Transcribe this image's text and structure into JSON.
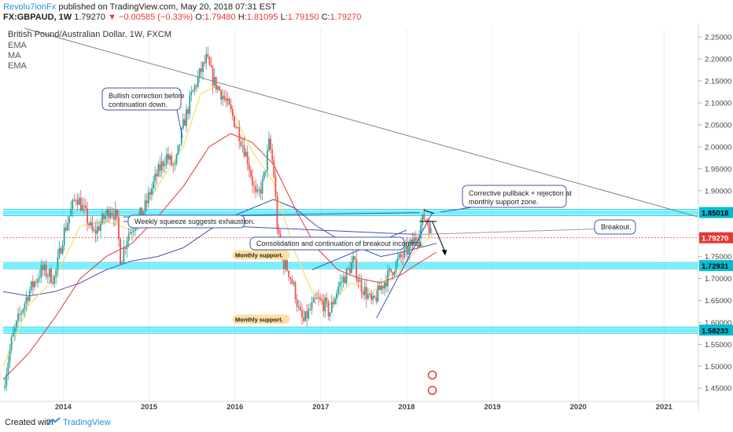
{
  "header": {
    "author": "Revolu7ionFx",
    "published": "published on TradingView.com, May 20, 2018 07:31 EST",
    "symbol": "FX:GBPAUD, 1W",
    "last": "1.79270",
    "change": "−0.00585 (−0.33%)",
    "o_label": "O:",
    "o": "1.79480",
    "h_label": "H:",
    "h": "1.81095",
    "l_label": "L:",
    "l": "1.79150",
    "c_label": "C:",
    "c": "1.79270"
  },
  "legend": {
    "instrument": "British Pound/Australian Dollar, 1W, FXCM",
    "ind1": "EMA",
    "ind2": "MA",
    "ind3": "EMA"
  },
  "footer": {
    "created": "Created with",
    "brand": "TradingView"
  },
  "colors": {
    "up": "#26a69a",
    "down": "#ef5350",
    "ema_fast": "#f5e07a",
    "ema_slow": "#e53935",
    "ma": "#3f51b5",
    "zone": "#00e5ff",
    "price_line": "#e53935",
    "trend": "#7f7f7f"
  },
  "chart_data": {
    "type": "candlestick",
    "symbol": "GBPAUD",
    "timeframe": "1W",
    "x_ticks": [
      "2014",
      "2015",
      "2016",
      "2017",
      "2018",
      "2019",
      "2020",
      "2021"
    ],
    "y_ticks": [
      "2.25000",
      "2.20000",
      "2.15000",
      "2.10000",
      "2.05000",
      "2.00000",
      "1.95000",
      "1.90000",
      "1.85000",
      "1.80000",
      "1.75000",
      "1.70000",
      "1.65000",
      "1.60000",
      "1.55000",
      "1.50000",
      "1.45000"
    ],
    "ylim": [
      1.42,
      2.27
    ],
    "xlim": [
      2013.3,
      2021.4
    ],
    "last_price": 1.7927,
    "levels": [
      {
        "value": 1.85018,
        "label": "1.85018"
      },
      {
        "value": 1.72931,
        "label": "1.72931"
      },
      {
        "value": 1.58233,
        "label": "1.58233"
      }
    ],
    "price_label": "1.79270",
    "path": [
      [
        2013.3,
        1.45
      ],
      [
        2013.4,
        1.56
      ],
      [
        2013.5,
        1.62
      ],
      [
        2013.6,
        1.67
      ],
      [
        2013.75,
        1.72
      ],
      [
        2013.9,
        1.7
      ],
      [
        2014.0,
        1.8
      ],
      [
        2014.1,
        1.86
      ],
      [
        2014.15,
        1.89
      ],
      [
        2014.25,
        1.85
      ],
      [
        2014.35,
        1.8
      ],
      [
        2014.45,
        1.83
      ],
      [
        2014.55,
        1.86
      ],
      [
        2014.62,
        1.84
      ],
      [
        2014.67,
        1.74
      ],
      [
        2014.75,
        1.8
      ],
      [
        2014.85,
        1.83
      ],
      [
        2014.95,
        1.86
      ],
      [
        2015.0,
        1.89
      ],
      [
        2015.1,
        1.94
      ],
      [
        2015.2,
        1.98
      ],
      [
        2015.3,
        1.95
      ],
      [
        2015.4,
        2.05
      ],
      [
        2015.5,
        2.12
      ],
      [
        2015.6,
        2.17
      ],
      [
        2015.67,
        2.2
      ],
      [
        2015.75,
        2.15
      ],
      [
        2015.85,
        2.12
      ],
      [
        2015.95,
        2.08
      ],
      [
        2016.05,
        2.03
      ],
      [
        2016.15,
        1.97
      ],
      [
        2016.25,
        1.88
      ],
      [
        2016.33,
        1.92
      ],
      [
        2016.4,
        2.01
      ],
      [
        2016.45,
        1.95
      ],
      [
        2016.5,
        1.8
      ],
      [
        2016.55,
        1.74
      ],
      [
        2016.62,
        1.72
      ],
      [
        2016.7,
        1.67
      ],
      [
        2016.75,
        1.62
      ],
      [
        2016.8,
        1.6
      ],
      [
        2016.85,
        1.62
      ],
      [
        2016.95,
        1.65
      ],
      [
        2017.05,
        1.64
      ],
      [
        2017.1,
        1.62
      ],
      [
        2017.2,
        1.68
      ],
      [
        2017.3,
        1.71
      ],
      [
        2017.38,
        1.74
      ],
      [
        2017.45,
        1.69
      ],
      [
        2017.55,
        1.66
      ],
      [
        2017.6,
        1.64
      ],
      [
        2017.7,
        1.68
      ],
      [
        2017.8,
        1.71
      ],
      [
        2017.9,
        1.74
      ],
      [
        2018.0,
        1.76
      ],
      [
        2018.1,
        1.79
      ],
      [
        2018.15,
        1.81
      ],
      [
        2018.2,
        1.84
      ],
      [
        2018.25,
        1.83
      ],
      [
        2018.3,
        1.79
      ]
    ],
    "ema_fast": [
      [
        2013.3,
        1.5
      ],
      [
        2013.6,
        1.64
      ],
      [
        2013.9,
        1.7
      ],
      [
        2014.2,
        1.82
      ],
      [
        2014.5,
        1.83
      ],
      [
        2014.8,
        1.81
      ],
      [
        2015.1,
        1.91
      ],
      [
        2015.4,
        2.0
      ],
      [
        2015.6,
        2.12
      ],
      [
        2015.8,
        2.14
      ],
      [
        2016.0,
        2.07
      ],
      [
        2016.2,
        1.99
      ],
      [
        2016.45,
        1.92
      ],
      [
        2016.7,
        1.76
      ],
      [
        2016.9,
        1.67
      ],
      [
        2017.1,
        1.64
      ],
      [
        2017.35,
        1.69
      ],
      [
        2017.6,
        1.67
      ],
      [
        2017.85,
        1.7
      ],
      [
        2018.05,
        1.75
      ],
      [
        2018.3,
        1.8
      ]
    ],
    "ema_slow": [
      [
        2013.3,
        1.47
      ],
      [
        2013.6,
        1.53
      ],
      [
        2013.9,
        1.61
      ],
      [
        2014.2,
        1.7
      ],
      [
        2014.5,
        1.75
      ],
      [
        2014.8,
        1.78
      ],
      [
        2015.1,
        1.84
      ],
      [
        2015.4,
        1.91
      ],
      [
        2015.7,
        2.0
      ],
      [
        2015.95,
        2.03
      ],
      [
        2016.2,
        2.01
      ],
      [
        2016.45,
        1.96
      ],
      [
        2016.7,
        1.86
      ],
      [
        2016.95,
        1.77
      ],
      [
        2017.2,
        1.72
      ],
      [
        2017.45,
        1.7
      ],
      [
        2017.7,
        1.69
      ],
      [
        2017.95,
        1.71
      ],
      [
        2018.1,
        1.73
      ],
      [
        2018.35,
        1.76
      ]
    ],
    "ma": [
      [
        2013.3,
        1.67
      ],
      [
        2013.6,
        1.66
      ],
      [
        2013.9,
        1.67
      ],
      [
        2014.2,
        1.69
      ],
      [
        2014.5,
        1.72
      ],
      [
        2014.8,
        1.74
      ],
      [
        2015.1,
        1.75
      ],
      [
        2015.4,
        1.77
      ],
      [
        2015.7,
        1.81
      ],
      [
        2015.95,
        1.84
      ],
      [
        2016.2,
        1.86
      ],
      [
        2016.45,
        1.88
      ],
      [
        2016.7,
        1.86
      ],
      [
        2016.95,
        1.82
      ],
      [
        2017.2,
        1.79
      ],
      [
        2017.45,
        1.77
      ],
      [
        2017.7,
        1.75
      ],
      [
        2017.95,
        1.76
      ],
      [
        2018.15,
        1.77
      ],
      [
        2018.35,
        1.78
      ]
    ],
    "trendline": [
      [
        2013.55,
        2.27
      ],
      [
        2021.4,
        1.84
      ]
    ],
    "annotations": [
      {
        "name": "bullish-correction-note",
        "lines": [
          "Bullish correction before",
          "continuation down."
        ]
      },
      {
        "name": "weekly-squeeze-note",
        "lines": [
          "Weekly squeeze suggests exhaustion."
        ]
      },
      {
        "name": "consolidation-note",
        "lines": [
          "Consolidation and continuation of breakout incoming."
        ]
      },
      {
        "name": "corrective-pullback-note",
        "lines": [
          "Corrective pullback + rejection at",
          "monthly support zone."
        ]
      },
      {
        "name": "breakout-note",
        "lines": [
          "Breakout."
        ]
      },
      {
        "name": "monthly-support-upper",
        "lines": [
          "Monthly support."
        ]
      },
      {
        "name": "monthly-support-lower",
        "lines": [
          "Monthly support."
        ]
      }
    ]
  }
}
